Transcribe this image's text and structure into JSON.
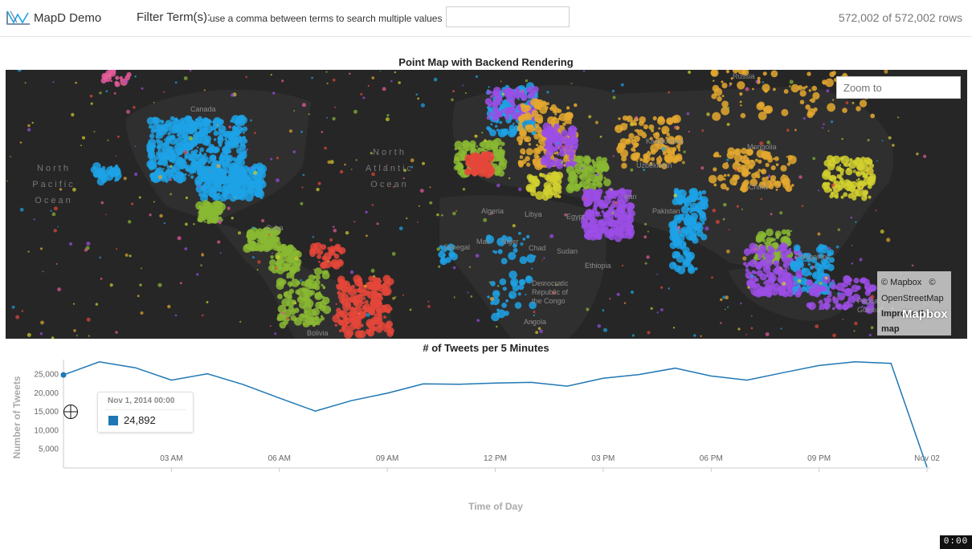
{
  "header": {
    "app_title": "MapD Demo",
    "filter_label": "Filter Term(s):",
    "filter_hint": "use a comma between terms to search multiple values",
    "filter_value": "",
    "row_count": "572,002 of 572,002 rows",
    "logo_icon": "mapd-logo-icon"
  },
  "map": {
    "title": "Point Map with Backend Rendering",
    "zoom_placeholder": "Zoom to",
    "labels": {
      "canada": "Canada",
      "russia": "Russia",
      "kazakhstan": "Kazakhstan",
      "mongolia": "Mongolia",
      "uzbekistan": "Uzbekistan",
      "china": "China",
      "iran": "Iran",
      "pakistan": "Pakistan",
      "algeria": "Algeria",
      "libya": "Libya",
      "egypt": "Egypt",
      "mali": "Mali",
      "niger": "Niger",
      "chad": "Chad",
      "sudan": "Sudan",
      "senegal": "Senegal",
      "ethiopia": "Ethiopia",
      "drc": "Democratic Republic of the Congo",
      "angola": "Angola",
      "bolivia": "Bolivia",
      "cuba": "Cuba",
      "philippines": "Philippines",
      "png": "Papua Guinea"
    },
    "north_pacific": "North Pacific Ocean",
    "north_atlantic": "North Atlantic Ocean",
    "attribution": {
      "mapbox": "© Mapbox",
      "copyright": "©",
      "osm": "OpenStreetMap",
      "improve": "Improve this map",
      "logo": "Mapbox"
    },
    "colors": {
      "blue": "#1da2e6",
      "green": "#8ab833",
      "orange": "#e4a82f",
      "red": "#e5473a",
      "purple": "#9b4de5",
      "pink": "#e65a9b",
      "yellow": "#d2d02e"
    }
  },
  "chart_data": {
    "type": "line",
    "title": "# of Tweets per 5 Minutes",
    "xlabel": "Time of Day",
    "ylabel": "Number of Tweets",
    "x_tick_labels": [
      "03 AM",
      "06 AM",
      "09 AM",
      "12 PM",
      "03 PM",
      "06 PM",
      "09 PM",
      "Nov 02"
    ],
    "y_tick_labels": [
      "5,000",
      "10,000",
      "15,000",
      "20,000",
      "25,000"
    ],
    "y_ticks": [
      5000,
      10000,
      15000,
      20000,
      25000
    ],
    "ylim": [
      0,
      29000
    ],
    "x_hours": [
      0,
      1,
      2,
      3,
      4,
      5,
      6,
      7,
      8,
      9,
      10,
      11,
      12,
      13,
      14,
      15,
      16,
      17,
      18,
      19,
      20,
      21,
      22,
      23,
      24
    ],
    "values": [
      24892,
      28400,
      26800,
      23500,
      25200,
      22300,
      18700,
      15200,
      18000,
      20000,
      22500,
      22400,
      22700,
      22900,
      21900,
      24000,
      25000,
      26700,
      24600,
      23500,
      25500,
      27400,
      28400,
      28000,
      200
    ],
    "line_color": "#1f77b4",
    "tooltip": {
      "date": "Nov 1, 2014  00:00",
      "value": "24,892",
      "swatch_color": "#1f77b4"
    }
  },
  "overlay": {
    "timer": "0:00"
  }
}
